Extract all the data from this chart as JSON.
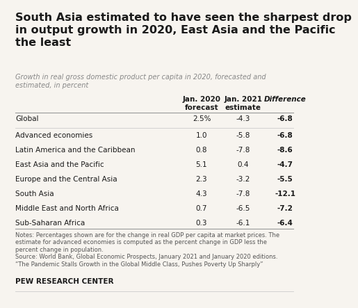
{
  "title": "South Asia estimated to have seen the sharpest drop\nin output growth in 2020, East Asia and the Pacific\nthe least",
  "subtitle": "Growth in real gross domestic product per capita in 2020, forecasted and\nestimated, in percent",
  "col_headers": [
    "Jan. 2020\nforecast",
    "Jan. 2021\nestimate",
    "Difference"
  ],
  "rows": [
    {
      "label": "Global",
      "forecast": "2.5%",
      "estimate": "-4.3",
      "diff": "-6.8"
    },
    {
      "label": "Advanced economies",
      "forecast": "1.0",
      "estimate": "-5.8",
      "diff": "-6.8"
    },
    {
      "label": "Latin America and the Caribbean",
      "forecast": "0.8",
      "estimate": "-7.8",
      "diff": "-8.6"
    },
    {
      "label": "East Asia and the Pacific",
      "forecast": "5.1",
      "estimate": "0.4",
      "diff": "-4.7"
    },
    {
      "label": "Europe and the Central Asia",
      "forecast": "2.3",
      "estimate": "-3.2",
      "diff": "-5.5"
    },
    {
      "label": "South Asia",
      "forecast": "4.3",
      "estimate": "-7.8",
      "diff": "-12.1"
    },
    {
      "label": "Middle East and North Africa",
      "forecast": "0.7",
      "estimate": "-6.5",
      "diff": "-7.2"
    },
    {
      "label": "Sub-Saharan Africa",
      "forecast": "0.3",
      "estimate": "-6.1",
      "diff": "-6.4"
    }
  ],
  "notes_line1": "Notes: Percentages shown are for the change in real GDP per capita at market prices. The",
  "notes_line2": "estimate for advanced economies is computed as the percent change in GDP less the",
  "notes_line3": "percent change in population.",
  "notes_line4": "Source: World Bank, Global Economic Prospects, January 2021 and January 2020 editions.",
  "notes_line5": "“The Pandemic Stalls Growth in the Global Middle Class, Pushes Poverty Up Sharply”",
  "footer": "PEW RESEARCH CENTER",
  "bg_color": "#f7f4ef"
}
